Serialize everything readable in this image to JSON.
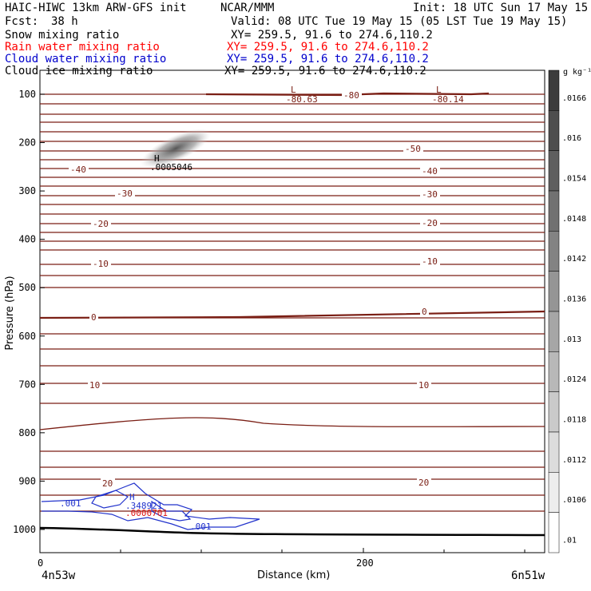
{
  "header": {
    "model": "HAIC-HIWC 13km ARW-GFS init",
    "org": "NCAR/MMM",
    "init": "Init: 18 UTC Sun 17 May 15",
    "fcst_label": "Fcst:",
    "fcst_value": "38 h",
    "valid": "Valid: 08 UTC Tue 19 May 15 (05 LST Tue 19 May 15)"
  },
  "fields": [
    {
      "name": "Snow mixing ratio",
      "xy": "XY= 259.5, 91.6 to 274.6,110.2",
      "color": "#000000"
    },
    {
      "name": "Rain water mixing ratio",
      "xy": "XY= 259.5, 91.6 to 274.6,110.2",
      "color": "#ff0000"
    },
    {
      "name": "Cloud water mixing ratio",
      "xy": "XY= 259.5, 91.6 to 274.6,110.2",
      "color": "#0000cc"
    },
    {
      "name": "Cloud ice mixing ratio",
      "xy": "XY= 259.5, 91.6 to 274.6,110.2",
      "color": "#000000"
    }
  ],
  "axes": {
    "ylabel": "Pressure (hPa)",
    "xlabel": "Distance (km)",
    "left_location": "4n53w",
    "right_location": "6n51w"
  },
  "colorbar": {
    "unit": "g kg⁻¹",
    "labels": [
      ".0166",
      ".016",
      ".0154",
      ".0148",
      ".0142",
      ".0136",
      ".013",
      ".0124",
      ".0118",
      ".0112",
      ".0106",
      ".01"
    ]
  },
  "colors": {
    "temperature_contour": "#7a1e14",
    "cloud_water": "#2233cc",
    "rain": "#dd1111",
    "terrain": "#000000"
  },
  "chart_data": {
    "type": "contour",
    "x_range_km": [
      0,
      312
    ],
    "x_ticks": [
      0,
      200
    ],
    "y_axis": "pressure (inverted)",
    "y_range_hPa": [
      1050,
      70
    ],
    "y_ticks": [
      100,
      200,
      300,
      400,
      500,
      600,
      700,
      800,
      900,
      1000
    ],
    "isotherm_levels": [
      {
        "label": "-80",
        "p": 100
      },
      {
        "label": "-50",
        "p": 212
      },
      {
        "label": "-40",
        "p": 255
      },
      {
        "label": "-30",
        "p": 295
      },
      {
        "label": "-20",
        "p": 370
      },
      {
        "label": "-10",
        "p": 452
      },
      {
        "label": "0",
        "p": 562
      },
      {
        "label": "10",
        "p": 703
      },
      {
        "label": "20",
        "p": 905
      }
    ],
    "temperature_extrema": [
      {
        "type": "L",
        "value": "-80.63",
        "x_km": 157,
        "p": 103
      },
      {
        "type": "L",
        "value": "-80.14",
        "x_km": 247,
        "p": 103
      }
    ],
    "snow_max": {
      "type": "H",
      "value": ".0005046",
      "x_km": 73,
      "p": 227
    },
    "cloud_water": {
      "labels": [
        ".001",
        ".001"
      ],
      "max": {
        "type": "H",
        "value": ".348921",
        "x_km": 55,
        "p": 950
      }
    },
    "rain": {
      "max_value": ".0000701",
      "x_km": 55,
      "p": 973
    }
  }
}
